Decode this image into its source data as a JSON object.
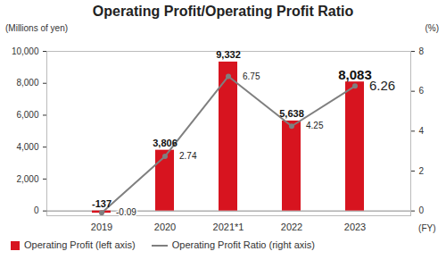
{
  "chart_data": {
    "type": "bar",
    "title": "Operating Profit/Operating Profit Ratio",
    "y_label": "(Millions of yen)",
    "y2_label": "(%)",
    "x_label": "(FY)",
    "categories": [
      "2019",
      "2020",
      "2021*1",
      "2022",
      "2023"
    ],
    "series": [
      {
        "name": "Operating Profit (left axis)",
        "type": "bar",
        "color": "#d7141f",
        "values": [
          -137,
          3806,
          9332,
          5638,
          8083
        ],
        "value_labels": [
          "-137",
          "3,806",
          "9,332",
          "5,638",
          "8,083"
        ]
      },
      {
        "name": "Operating Profit Ratio (right axis)",
        "type": "line",
        "axis": "y2",
        "color": "#7f7f7f",
        "marker": "circle",
        "values": [
          -0.09,
          2.74,
          6.75,
          4.25,
          6.26
        ]
      }
    ],
    "ylim": [
      -300,
      10000
    ],
    "yticks": [
      0,
      {
        "value": 2000,
        "label": "2,000"
      },
      {
        "value": 4000,
        "label": "4,000"
      },
      {
        "value": 6000,
        "label": "6,000"
      },
      {
        "value": 8000,
        "label": "8,000"
      },
      {
        "value": 10000,
        "label": "10,000"
      }
    ],
    "y2lim": [
      -0.24,
      8
    ],
    "y2ticks": [
      0,
      2,
      4,
      6,
      8
    ],
    "data_labels": true,
    "legend": "bottom"
  }
}
